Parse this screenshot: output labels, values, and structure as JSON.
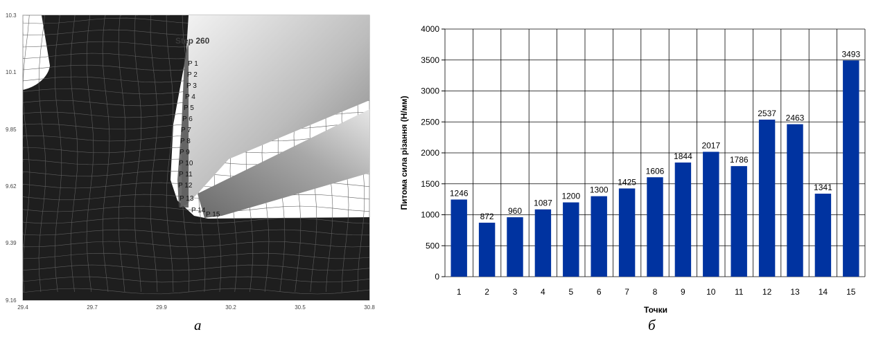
{
  "panel_a": {
    "caption": "а",
    "step_label": "Step 260",
    "point_labels": [
      "P 1",
      "P 2",
      "P 3",
      "P 4",
      "P 5",
      "P 6",
      "P 7",
      "P 8",
      "P 9",
      "P 10",
      "P 11",
      "P 12",
      "P 13",
      "P 14",
      "P 15"
    ],
    "y_ticks": [
      "10.3",
      "10.1",
      "9.85",
      "9.62",
      "9.39",
      "9.16"
    ],
    "x_ticks": [
      "29.4",
      "29.7",
      "29.9",
      "30.2",
      "30.5",
      "30.8"
    ],
    "colors": {
      "mesh_fill": "#1e1e1e",
      "mesh_line": "#6a6a6a",
      "tool_light": "#f2f2f2",
      "tool_dark": "#6e6e6e"
    }
  },
  "chart_data": {
    "type": "bar",
    "caption": "б",
    "categories": [
      "1",
      "2",
      "3",
      "4",
      "5",
      "6",
      "7",
      "8",
      "9",
      "10",
      "11",
      "12",
      "13",
      "14",
      "15"
    ],
    "values": [
      1246,
      872,
      960,
      1087,
      1200,
      1300,
      1425,
      1606,
      1844,
      2017,
      1786,
      2537,
      2463,
      1341,
      3493
    ],
    "data_labels": [
      "1246",
      "872",
      "960",
      "1087",
      "1200",
      "1300",
      "1425",
      "1606",
      "1844",
      "2017",
      "1786",
      "2537",
      "2463",
      "1341",
      "3493"
    ],
    "y_ticks": [
      "0",
      "500",
      "1000",
      "1500",
      "2000",
      "2500",
      "3000",
      "3500",
      "4000"
    ],
    "xlabel": "Точки",
    "ylabel": "Питома сила різання (Н/мм)",
    "ylim": [
      0,
      4000
    ],
    "grid": true,
    "bar_color": "#0033a0"
  }
}
